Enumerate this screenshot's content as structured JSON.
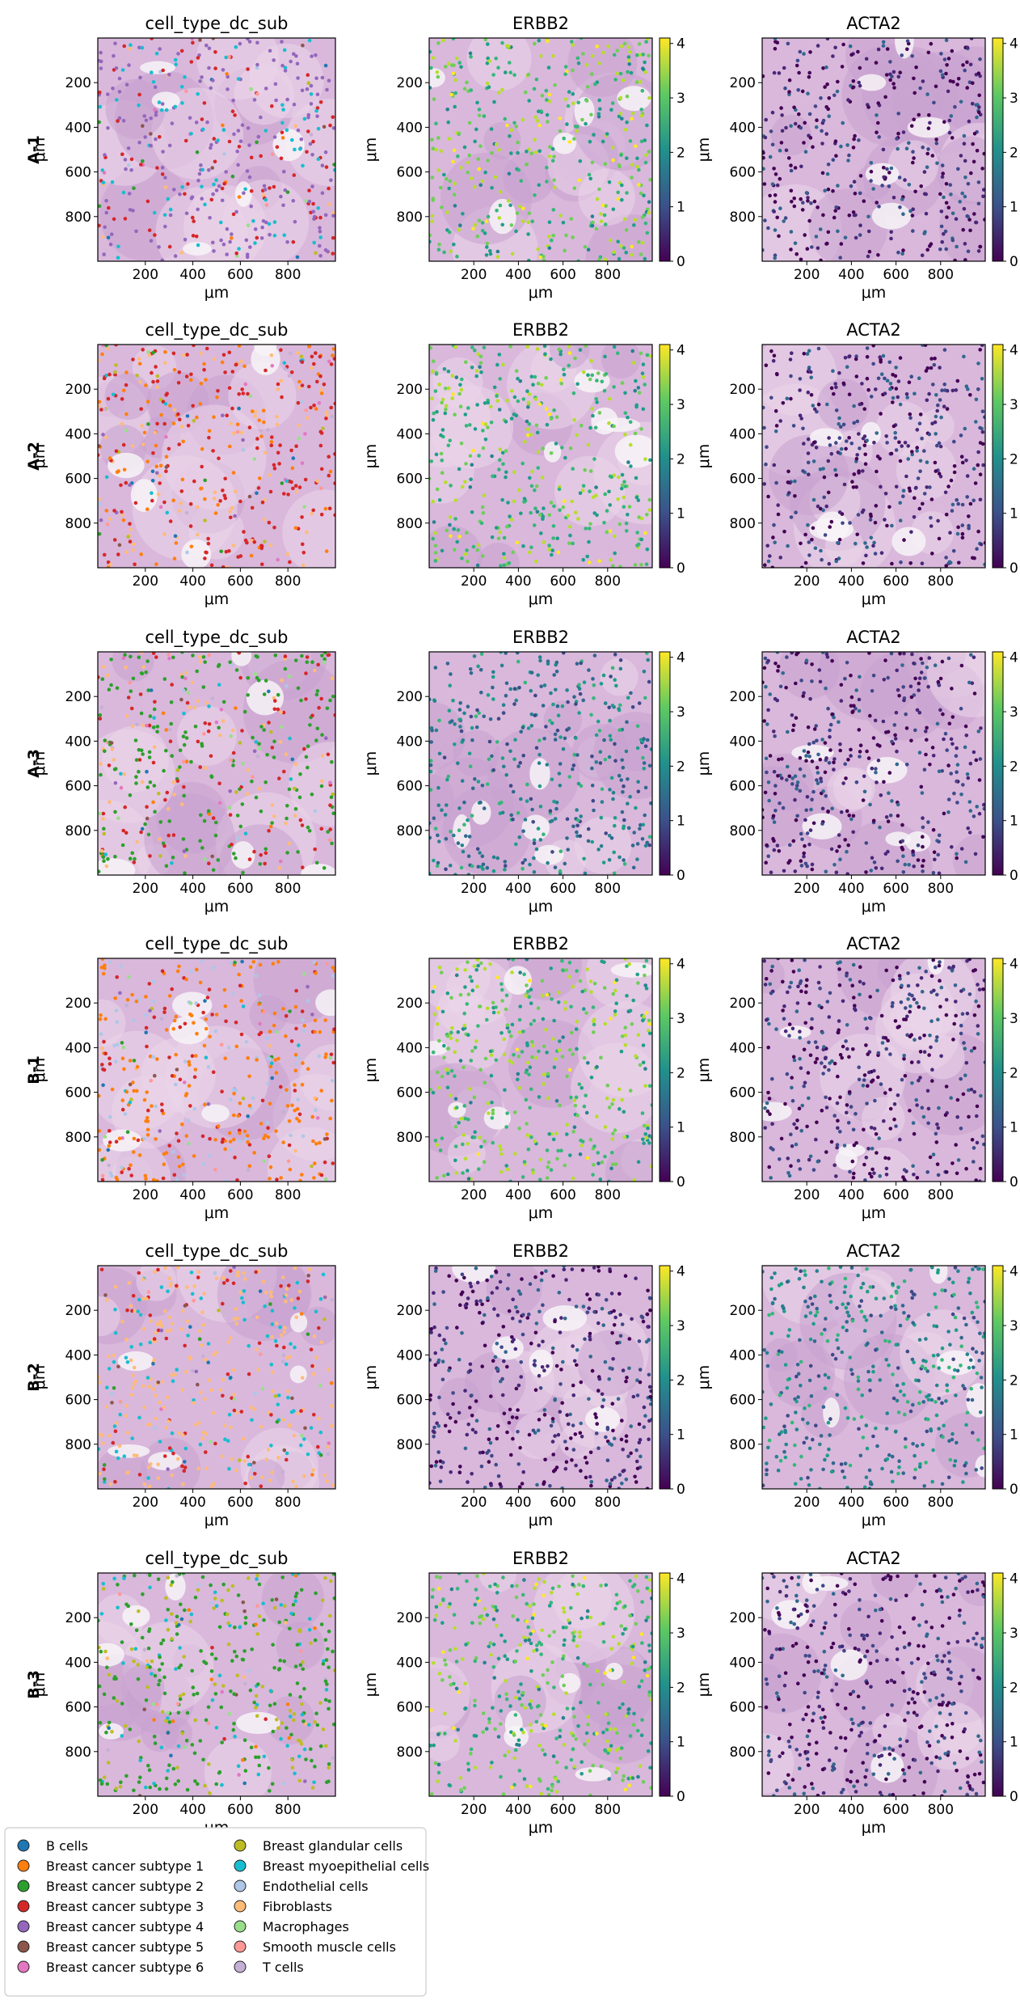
{
  "figure": {
    "row_labels": [
      "A-1",
      "A-2",
      "A-3",
      "B-1",
      "B-2",
      "B-3"
    ],
    "column_titles": [
      "cell_type_dc_sub",
      "ERBB2",
      "ACTA2"
    ],
    "x_axis_label": "μm",
    "y_axis_label": "μm",
    "x_ticks": [
      "200",
      "400",
      "600",
      "800"
    ],
    "y_ticks": [
      "200",
      "400",
      "600",
      "800"
    ],
    "colorbar_ticks": [
      "0",
      "1",
      "2",
      "3",
      "4"
    ]
  },
  "legend": {
    "items": [
      {
        "label": "B cells",
        "color": "#1f77b4"
      },
      {
        "label": "Breast cancer subtype 1",
        "color": "#ff7f0e"
      },
      {
        "label": "Breast cancer subtype 2",
        "color": "#2ca02c"
      },
      {
        "label": "Breast cancer subtype 3",
        "color": "#d62728"
      },
      {
        "label": "Breast cancer subtype 4",
        "color": "#9467bd"
      },
      {
        "label": "Breast cancer subtype 5",
        "color": "#8c564b"
      },
      {
        "label": "Breast cancer subtype 6",
        "color": "#e377c2"
      },
      {
        "label": "Breast glandular cells",
        "color": "#bcbd22"
      },
      {
        "label": "Breast myoepithelial cells",
        "color": "#17becf"
      },
      {
        "label": "Endothelial cells",
        "color": "#aec7e8"
      },
      {
        "label": "Fibroblasts",
        "color": "#ffbb78"
      },
      {
        "label": "Macrophages",
        "color": "#98df8a"
      },
      {
        "label": "Smooth muscle cells",
        "color": "#ff9896"
      },
      {
        "label": "T cells",
        "color": "#c5b0d5"
      }
    ]
  },
  "chart_data": {
    "type": "scatter",
    "panel_grid": {
      "rows": 6,
      "columns": 3
    },
    "x_range": [
      0,
      1000
    ],
    "y_range": [
      1000,
      0
    ],
    "y_axis_inverted": true,
    "colorbar_range": [
      0,
      4.1
    ],
    "colormap": "viridis",
    "grid": false,
    "legend_placement": "bottom-left",
    "background": "H&E tissue image",
    "rows": [
      {
        "label": "A-1",
        "dominant_types": [
          "Breast cancer subtype 4",
          "Breast cancer subtype 3",
          "Breast myoepithelial cells"
        ],
        "erbb2_level": "high",
        "acta2_level": "low"
      },
      {
        "label": "A-2",
        "dominant_types": [
          "Breast cancer subtype 3",
          "Breast cancer subtype 1",
          "Fibroblasts"
        ],
        "erbb2_level": "high",
        "acta2_level": "low"
      },
      {
        "label": "A-3",
        "dominant_types": [
          "Breast cancer subtype 2",
          "Breast cancer subtype 3",
          "Fibroblasts"
        ],
        "erbb2_level": "medium",
        "acta2_level": "low"
      },
      {
        "label": "B-1",
        "dominant_types": [
          "Breast cancer subtype 1",
          "Breast cancer subtype 3",
          "Endothelial cells"
        ],
        "erbb2_level": "high",
        "acta2_level": "low"
      },
      {
        "label": "B-2",
        "dominant_types": [
          "Fibroblasts",
          "Breast myoepithelial cells",
          "Breast cancer subtype 3"
        ],
        "erbb2_level": "low",
        "acta2_level": "medium"
      },
      {
        "label": "B-3",
        "dominant_types": [
          "Breast cancer subtype 2",
          "Breast glandular cells",
          "Breast myoepithelial cells"
        ],
        "erbb2_level": "high",
        "acta2_level": "low"
      }
    ]
  }
}
